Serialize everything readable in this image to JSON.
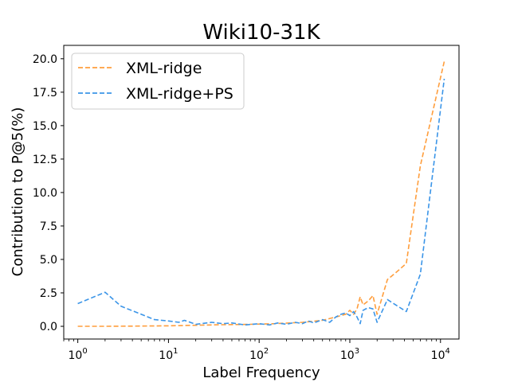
{
  "chart_data": {
    "type": "line",
    "title": "Wiki10-31K",
    "xlabel": "Label Frequency",
    "ylabel": "Contribution to P@5(%)",
    "xscale": "log",
    "xlim": [
      0.7,
      16000
    ],
    "ylim": [
      -0.95,
      21.0
    ],
    "xticks": [
      {
        "value": 1,
        "base": "10",
        "exp": "0"
      },
      {
        "value": 10,
        "base": "10",
        "exp": "1"
      },
      {
        "value": 100,
        "base": "10",
        "exp": "2"
      },
      {
        "value": 1000,
        "base": "10",
        "exp": "3"
      },
      {
        "value": 10000,
        "base": "10",
        "exp": "4"
      }
    ],
    "yticks": [
      {
        "value": 0,
        "label": "0.0"
      },
      {
        "value": 2.5,
        "label": "2.5"
      },
      {
        "value": 5,
        "label": "5.0"
      },
      {
        "value": 7.5,
        "label": "7.5"
      },
      {
        "value": 10,
        "label": "10.0"
      },
      {
        "value": 12.5,
        "label": "12.5"
      },
      {
        "value": 15,
        "label": "15.0"
      },
      {
        "value": 17.5,
        "label": "17.5"
      },
      {
        "value": 20,
        "label": "20.0"
      }
    ],
    "legend_position": "top-left",
    "series": [
      {
        "name": "XML-ridge",
        "color": "#ff9e3d",
        "x": [
          1,
          2,
          5,
          10,
          20,
          40,
          80,
          150,
          300,
          500,
          700,
          900,
          1000,
          1100,
          1200,
          1300,
          1400,
          1600,
          1800,
          2000,
          2600,
          3200,
          4200,
          6000,
          11000
        ],
        "y": [
          0.0,
          0.0,
          0.02,
          0.04,
          0.08,
          0.12,
          0.15,
          0.2,
          0.3,
          0.45,
          0.7,
          0.9,
          1.2,
          0.9,
          1.3,
          2.2,
          1.6,
          1.9,
          2.3,
          0.9,
          3.5,
          4.0,
          4.7,
          12.0,
          19.8
        ]
      },
      {
        "name": "XML-ridge+PS",
        "color": "#3b95e8",
        "x": [
          1,
          2,
          3,
          5,
          7,
          10,
          13,
          15,
          20,
          30,
          40,
          50,
          70,
          100,
          130,
          160,
          200,
          250,
          300,
          350,
          400,
          500,
          600,
          700,
          800,
          900,
          1000,
          1100,
          1200,
          1300,
          1400,
          1600,
          1800,
          2000,
          2600,
          3200,
          4200,
          6000,
          11000
        ],
        "y": [
          1.7,
          2.55,
          1.5,
          0.9,
          0.5,
          0.4,
          0.3,
          0.45,
          0.15,
          0.3,
          0.2,
          0.25,
          0.1,
          0.2,
          0.1,
          0.25,
          0.15,
          0.3,
          0.2,
          0.4,
          0.25,
          0.5,
          0.3,
          0.7,
          0.9,
          1.0,
          0.8,
          1.1,
          0.7,
          0.2,
          1.2,
          1.4,
          1.3,
          0.3,
          2.0,
          1.6,
          1.1,
          3.9,
          18.5
        ]
      }
    ]
  }
}
